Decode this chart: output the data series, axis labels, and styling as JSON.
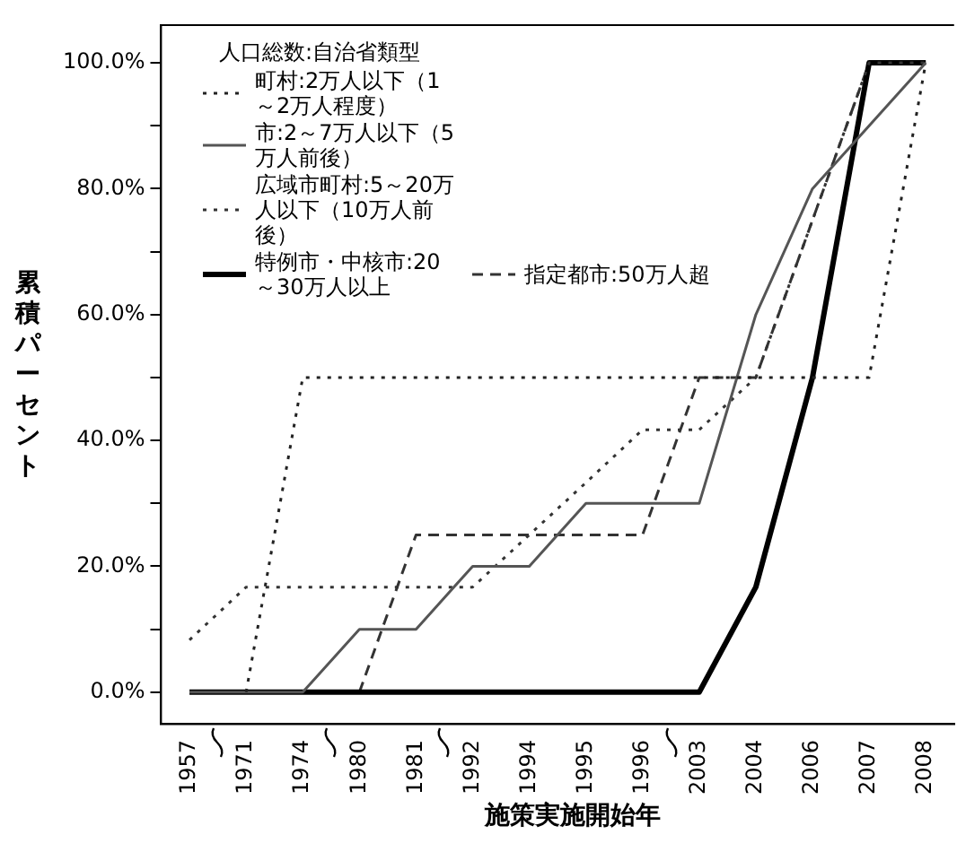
{
  "chart_data": {
    "type": "line",
    "xlabel": "施策実施開始年",
    "ylabel": "累積パーセント",
    "legend_title": "人口総数:自治省類型",
    "categories": [
      "1957",
      "1971",
      "1974",
      "1980",
      "1981",
      "1992",
      "1994",
      "1995",
      "1996",
      "2003",
      "2004",
      "2006",
      "2007",
      "2008"
    ],
    "series": [
      {
        "name": "町村:2万人以下（1～2万人程度）",
        "color": "#222222",
        "line_style": "dotted",
        "values": [
          null,
          0,
          50,
          50,
          50,
          50,
          50,
          50,
          50,
          50,
          50,
          50,
          50,
          100
        ]
      },
      {
        "name": "市:2～7万人以下（5万人前後）",
        "color": "#555555",
        "line_style": "solid",
        "values": [
          0,
          0,
          0,
          10,
          10,
          20,
          20,
          30,
          30,
          30,
          60,
          80,
          90,
          100
        ]
      },
      {
        "name": "広域市町村:5～20万人以下（10万人前後）",
        "color": "#333333",
        "line_style": "dotted",
        "values": [
          8.3,
          16.7,
          16.7,
          16.7,
          16.7,
          16.7,
          25,
          33.3,
          41.7,
          41.7,
          50,
          75,
          100,
          100
        ]
      },
      {
        "name": "特例市・中核市:20～30万人以上",
        "color": "#000000",
        "line_style": "solid",
        "values": [
          0,
          0,
          0,
          0,
          0,
          0,
          0,
          0,
          0,
          0,
          16.7,
          50,
          100,
          100
        ]
      },
      {
        "name": "指定都市:50万人超",
        "color": "#333333",
        "line_style": "dashed",
        "values": [
          null,
          null,
          null,
          0,
          25,
          25,
          25,
          25,
          25,
          50,
          50,
          75,
          100,
          100
        ]
      }
    ],
    "ylim": [
      -5,
      106
    ],
    "yticks": [
      {
        "value": 0,
        "label": "0.0%"
      },
      {
        "value": 10,
        "label": null
      },
      {
        "value": 20,
        "label": "20.0%"
      },
      {
        "value": 30,
        "label": null
      },
      {
        "value": 40,
        "label": "40.0%"
      },
      {
        "value": 50,
        "label": null
      },
      {
        "value": 60,
        "label": "60.0%"
      },
      {
        "value": 70,
        "label": null
      },
      {
        "value": 80,
        "label": "80.0%"
      },
      {
        "value": 90,
        "label": null
      },
      {
        "value": 100,
        "label": "100.0%"
      }
    ],
    "grid": false,
    "legend": "top left",
    "marker": "none"
  }
}
